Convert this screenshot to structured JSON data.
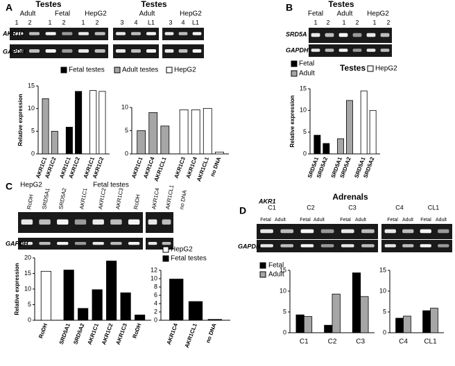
{
  "panels": [
    {
      "label": "A",
      "headers": [
        "Testes",
        "Adult",
        "Fetal",
        "HepG2",
        "Testes",
        "Adult",
        "HepG2"
      ],
      "lanes": [
        "1",
        "2",
        "1",
        "2",
        "1",
        "2",
        "3",
        "4",
        "L1",
        "3",
        "4",
        "L1"
      ],
      "genes": [
        "AKR1C",
        "GAPDH"
      ],
      "legend": [
        {
          "name": "Fetal testes",
          "color": "#000000"
        },
        {
          "name": "Adult testes",
          "color": "#a6a6a6"
        },
        {
          "name": "HepG2",
          "color": "#ffffff"
        }
      ]
    },
    {
      "label": "B",
      "headers": [
        "Testes",
        "Fetal",
        "Adult",
        "HepG2"
      ],
      "lanes": [
        "1",
        "2",
        "1",
        "2",
        "1",
        "2"
      ],
      "genes": [
        "SRD5A",
        "GAPDH"
      ],
      "legend_title": "Testes",
      "legend": [
        {
          "name": "Fetal",
          "color": "#000000"
        },
        {
          "name": "Adult",
          "color": "#a6a6a6"
        },
        {
          "name": "HepG2",
          "color": "#ffffff"
        }
      ]
    },
    {
      "label": "C",
      "headers": [
        "HepG2",
        "Fetal testes"
      ],
      "lanes": [
        "RoDH",
        "SRD5A1",
        "SRD5A2",
        "AKR1C1",
        "AKR1C2",
        "AKR1C3",
        "RoDH",
        "AKR1C4",
        "AKR1CL1",
        "no DNA"
      ],
      "genes": [
        "GAPDH"
      ],
      "legend": [
        {
          "name": "HepG2",
          "color": "#ffffff"
        },
        {
          "name": "Fetal testes",
          "color": "#000000"
        }
      ]
    },
    {
      "label": "D",
      "headers": [
        "Adrenals"
      ],
      "genes": [
        "AKR1",
        "GAPDH"
      ],
      "lanes": [
        "C1",
        "C2",
        "C3",
        "C4",
        "CL1"
      ],
      "sublanes": [
        "Fetal",
        "Adult",
        "Fetal",
        "Adult",
        "Fetal",
        "Adult",
        "Fetal",
        "Adult",
        "Fetal",
        "Adult"
      ]
    }
  ],
  "chart_data": [
    {
      "type": "bar",
      "y_label": "Relative expression",
      "categories": [
        "AKR1C1",
        "AKR1C2",
        "AKR1C1",
        "AKR1C2",
        "AKR1C1",
        "AKR1C2"
      ],
      "values": [
        12.2,
        5.0,
        5.9,
        13.8,
        14.0,
        13.8
      ],
      "colors": [
        "#a6a6a6",
        "#a6a6a6",
        "#000000",
        "#000000",
        "#ffffff",
        "#ffffff"
      ],
      "ylim": [
        0,
        15
      ],
      "yticks": [
        0,
        5,
        10,
        15
      ]
    },
    {
      "type": "bar",
      "categories": [
        "AKR1C1",
        "AKR1C4",
        "AKR1CL1",
        "AKR1C3",
        "AKR1C4",
        "AKR1CL1",
        "no DNA"
      ],
      "values": [
        5.0,
        8.9,
        6.0,
        9.5,
        9.5,
        9.8,
        0.4
      ],
      "colors": [
        "#a6a6a6",
        "#a6a6a6",
        "#a6a6a6",
        "#ffffff",
        "#ffffff",
        "#ffffff",
        "#ffffff"
      ],
      "ylim": [
        0,
        10
      ],
      "yticks": [
        0,
        5,
        10
      ]
    },
    {
      "type": "bar",
      "y_label": "Relative expression",
      "categories": [
        "SRD5A1",
        "SRD5A2",
        "SRD5A1",
        "SRD5A2",
        "SRD5A1",
        "SRD5A2"
      ],
      "values": [
        4.3,
        2.4,
        3.5,
        12.3,
        14.5,
        10.0
      ],
      "colors": [
        "#000000",
        "#000000",
        "#a6a6a6",
        "#a6a6a6",
        "#ffffff",
        "#ffffff"
      ],
      "ylim": [
        0,
        15
      ],
      "yticks": [
        0,
        5,
        10,
        15
      ]
    },
    {
      "type": "bar",
      "y_label": "Relative expression",
      "categories": [
        "RoDH",
        "SRD5A1",
        "SRD5A2",
        "AKR1C1",
        "AKR1C2",
        "AKR1C3",
        "RoDH"
      ],
      "values": [
        15.7,
        16.1,
        3.8,
        9.8,
        19.0,
        8.8,
        1.7
      ],
      "colors": [
        "#ffffff",
        "#000000",
        "#000000",
        "#000000",
        "#000000",
        "#000000",
        "#000000"
      ],
      "ylim": [
        0,
        20
      ],
      "yticks": [
        0,
        5,
        10,
        15,
        20
      ]
    },
    {
      "type": "bar",
      "categories": [
        "AKR1C4",
        "AKR1CL1",
        "no DNA"
      ],
      "values": [
        9.9,
        4.5,
        0.2
      ],
      "colors": [
        "#000000",
        "#000000",
        "#000000"
      ],
      "ylim": [
        0,
        12
      ],
      "yticks": [
        0,
        2,
        4,
        6,
        8,
        10,
        12
      ]
    },
    {
      "type": "grouped_bar",
      "categories": [
        "C1",
        "C2",
        "C3"
      ],
      "series": [
        {
          "name": "Fetal",
          "color": "#000000",
          "values": [
            4.3,
            1.8,
            14.4
          ]
        },
        {
          "name": "Adult",
          "color": "#a6a6a6",
          "values": [
            3.9,
            9.3,
            8.7
          ]
        }
      ],
      "ylim": [
        0,
        15
      ],
      "yticks": [
        0,
        5,
        10,
        15
      ]
    },
    {
      "type": "grouped_bar",
      "categories": [
        "C4",
        "CL1"
      ],
      "series": [
        {
          "color": "#000000",
          "values": [
            3.5,
            5.3
          ]
        },
        {
          "color": "#a6a6a6",
          "values": [
            4.0,
            5.9
          ]
        }
      ],
      "ylim": [
        0,
        15
      ],
      "yticks": [
        0,
        5,
        10,
        15
      ]
    }
  ]
}
